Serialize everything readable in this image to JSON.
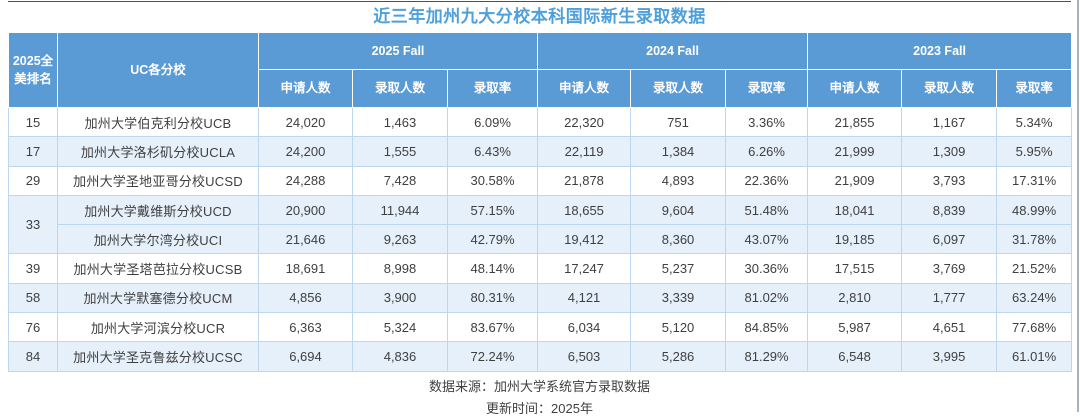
{
  "title": "近三年加州九大分校本科国际新生录取数据",
  "colors": {
    "header_bg": "#5B9BD5",
    "header_text": "#FFFFFF",
    "title_text": "#4EA0DC",
    "stripe_bg": "#E6F0FA",
    "grid_line": "#BDD7EE",
    "body_text": "#3F3F3F"
  },
  "table": {
    "rank_header": "2025全美排名",
    "campus_header": "UC各分校",
    "year_groups": [
      "2025 Fall",
      "2024 Fall",
      "2023 Fall"
    ],
    "sub_headers": [
      "申请人数",
      "录取人数",
      "录取率"
    ],
    "rows": [
      {
        "rank": "15",
        "campus": "加州大学伯克利分校UCB",
        "y2025": [
          "24,020",
          "1,463",
          "6.09%"
        ],
        "y2024": [
          "22,320",
          "751",
          "3.36%"
        ],
        "y2023": [
          "21,855",
          "1,167",
          "5.34%"
        ]
      },
      {
        "rank": "17",
        "campus": "加州大学洛杉矶分校UCLA",
        "y2025": [
          "24,200",
          "1,555",
          "6.43%"
        ],
        "y2024": [
          "22,119",
          "1,384",
          "6.26%"
        ],
        "y2023": [
          "21,999",
          "1,309",
          "5.95%"
        ]
      },
      {
        "rank": "29",
        "campus": "加州大学圣地亚哥分校UCSD",
        "y2025": [
          "24,288",
          "7,428",
          "30.58%"
        ],
        "y2024": [
          "21,878",
          "4,893",
          "22.36%"
        ],
        "y2023": [
          "21,909",
          "3,793",
          "17.31%"
        ]
      },
      {
        "rank": "33",
        "campus": "加州大学戴维斯分校UCD",
        "y2025": [
          "20,900",
          "11,944",
          "57.15%"
        ],
        "y2024": [
          "18,655",
          "9,604",
          "51.48%"
        ],
        "y2023": [
          "18,041",
          "8,839",
          "48.99%"
        ]
      },
      {
        "rank": null,
        "campus": "加州大学尔湾分校UCI",
        "y2025": [
          "21,646",
          "9,263",
          "42.79%"
        ],
        "y2024": [
          "19,412",
          "8,360",
          "43.07%"
        ],
        "y2023": [
          "19,185",
          "6,097",
          "31.78%"
        ]
      },
      {
        "rank": "39",
        "campus": "加州大学圣塔芭拉分校UCSB",
        "y2025": [
          "18,691",
          "8,998",
          "48.14%"
        ],
        "y2024": [
          "17,247",
          "5,237",
          "30.36%"
        ],
        "y2023": [
          "17,515",
          "3,769",
          "21.52%"
        ]
      },
      {
        "rank": "58",
        "campus": "加州大学默塞德分校UCM",
        "y2025": [
          "4,856",
          "3,900",
          "80.31%"
        ],
        "y2024": [
          "4,121",
          "3,339",
          "81.02%"
        ],
        "y2023": [
          "2,810",
          "1,777",
          "63.24%"
        ]
      },
      {
        "rank": "76",
        "campus": "加州大学河滨分校UCR",
        "y2025": [
          "6,363",
          "5,324",
          "83.67%"
        ],
        "y2024": [
          "6,034",
          "5,120",
          "84.85%"
        ],
        "y2023": [
          "5,987",
          "4,651",
          "77.68%"
        ]
      },
      {
        "rank": "84",
        "campus": "加州大学圣克鲁兹分校UCSC",
        "y2025": [
          "6,694",
          "4,836",
          "72.24%"
        ],
        "y2024": [
          "6,503",
          "5,286",
          "81.29%"
        ],
        "y2023": [
          "6,548",
          "3,995",
          "61.01%"
        ]
      }
    ]
  },
  "footer": {
    "source": "数据来源：加州大学系统官方录取数据",
    "updated": "更新时间：2025年"
  }
}
